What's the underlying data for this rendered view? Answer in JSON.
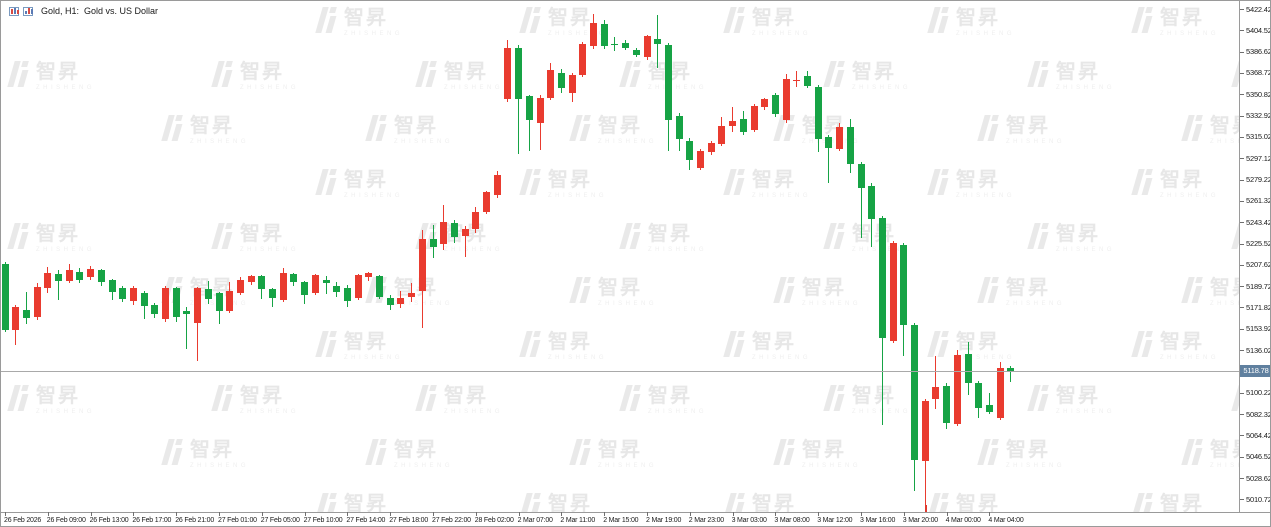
{
  "window": {
    "title": "Gold, H1:  Gold vs. US Dollar",
    "icons": [
      "candlestick-chart-icon",
      "chart-document-icon"
    ]
  },
  "watermark": {
    "logo_text": "智昇",
    "subtext": "ZHISHENG"
  },
  "price_axis": {
    "labels": [
      "5422.42",
      "5404.52",
      "5386.62",
      "5368.72",
      "5350.82",
      "5332.92",
      "5315.02",
      "5297.12",
      "5279.22",
      "5261.32",
      "5243.42",
      "5225.52",
      "5207.62",
      "5189.72",
      "5171.82",
      "5153.92",
      "5136.02",
      "5100.22",
      "5082.32",
      "5064.42",
      "5046.52",
      "5028.62",
      "5010.72"
    ],
    "step": 17.9,
    "current": {
      "value": "5118.78",
      "box_color": "#60809f"
    }
  },
  "time_axis": {
    "labels": [
      {
        "text": "26 Feb 2026",
        "bar": 0
      },
      {
        "text": "26 Feb 09:00",
        "bar": 4
      },
      {
        "text": "26 Feb 13:00",
        "bar": 8
      },
      {
        "text": "26 Feb 17:00",
        "bar": 12
      },
      {
        "text": "26 Feb 21:00",
        "bar": 16
      },
      {
        "text": "27 Feb 01:00",
        "bar": 20
      },
      {
        "text": "27 Feb 05:00",
        "bar": 24
      },
      {
        "text": "27 Feb 10:00",
        "bar": 28
      },
      {
        "text": "27 Feb 14:00",
        "bar": 32
      },
      {
        "text": "27 Feb 18:00",
        "bar": 36
      },
      {
        "text": "27 Feb 22:00",
        "bar": 40
      },
      {
        "text": "28 Feb 02:00",
        "bar": 44
      },
      {
        "text": "2 Mar 07:00",
        "bar": 48
      },
      {
        "text": "2 Mar 11:00",
        "bar": 52
      },
      {
        "text": "2 Mar 15:00",
        "bar": 56
      },
      {
        "text": "2 Mar 19:00",
        "bar": 60
      },
      {
        "text": "2 Mar 23:00",
        "bar": 64
      },
      {
        "text": "3 Mar 03:00",
        "bar": 68
      },
      {
        "text": "3 Mar 08:00",
        "bar": 72
      },
      {
        "text": "3 Mar 12:00",
        "bar": 76
      },
      {
        "text": "3 Mar 16:00",
        "bar": 80
      },
      {
        "text": "3 Mar 20:00",
        "bar": 84
      },
      {
        "text": "4 Mar 00:00",
        "bar": 88
      },
      {
        "text": "4 Mar 04:00",
        "bar": 92
      }
    ],
    "red_marker_bar": 86
  },
  "chart_data": {
    "type": "candlestick",
    "title": "Gold vs. US Dollar",
    "symbol": "Gold",
    "timeframe": "H1",
    "x_range": [
      "26 Feb 2026 05:00",
      "4 Mar 2026 06:00"
    ],
    "ylim": [
      4995,
      5428
    ],
    "price_grid_step": 17.9,
    "current_price": 5118.78,
    "color_convention": "red = bullish (up), green = bearish (down)",
    "up_color": "#e93b2f",
    "down_color": "#16a345",
    "grid": false,
    "values_estimated": true,
    "candles": [
      [
        5208,
        5210,
        5151,
        5153
      ],
      [
        5153,
        5174,
        5140,
        5172
      ],
      [
        5170,
        5185,
        5158,
        5163
      ],
      [
        5164,
        5192,
        5161,
        5189
      ],
      [
        5188,
        5206,
        5184,
        5201
      ],
      [
        5200,
        5203,
        5178,
        5194
      ],
      [
        5194,
        5208,
        5192,
        5203
      ],
      [
        5202,
        5205,
        5192,
        5195
      ],
      [
        5197,
        5207,
        5195,
        5204
      ],
      [
        5203,
        5204,
        5190,
        5193
      ],
      [
        5195,
        5196,
        5178,
        5185
      ],
      [
        5188,
        5190,
        5176,
        5179
      ],
      [
        5177,
        5190,
        5174,
        5188
      ],
      [
        5184,
        5186,
        5162,
        5173
      ],
      [
        5174,
        5176,
        5163,
        5166
      ],
      [
        5162,
        5190,
        5160,
        5188
      ],
      [
        5188,
        5189,
        5160,
        5164
      ],
      [
        5169,
        5172,
        5137,
        5166
      ],
      [
        5159,
        5189,
        5127,
        5188
      ],
      [
        5187,
        5194,
        5175,
        5179
      ],
      [
        5184,
        5185,
        5158,
        5169
      ],
      [
        5169,
        5193,
        5167,
        5186
      ],
      [
        5184,
        5197,
        5182,
        5195
      ],
      [
        5193,
        5199,
        5191,
        5198
      ],
      [
        5198,
        5199,
        5179,
        5187
      ],
      [
        5187,
        5188,
        5172,
        5180
      ],
      [
        5178,
        5205,
        5176,
        5201
      ],
      [
        5200,
        5201,
        5190,
        5193
      ],
      [
        5193,
        5194,
        5175,
        5182
      ],
      [
        5184,
        5200,
        5182,
        5199
      ],
      [
        5195,
        5198,
        5183,
        5192
      ],
      [
        5190,
        5193,
        5181,
        5185
      ],
      [
        5188,
        5191,
        5172,
        5177
      ],
      [
        5180,
        5200,
        5178,
        5199
      ],
      [
        5197,
        5202,
        5194,
        5201
      ],
      [
        5198,
        5199,
        5179,
        5181
      ],
      [
        5180,
        5182,
        5170,
        5174
      ],
      [
        5175,
        5186,
        5171,
        5180
      ],
      [
        5181,
        5192,
        5176,
        5184
      ],
      [
        5186,
        5237,
        5155,
        5229
      ],
      [
        5229,
        5241,
        5213,
        5223
      ],
      [
        5225,
        5258,
        5220,
        5244
      ],
      [
        5243,
        5245,
        5226,
        5231
      ],
      [
        5232,
        5240,
        5214,
        5238
      ],
      [
        5238,
        5256,
        5234,
        5252
      ],
      [
        5252,
        5270,
        5250,
        5269
      ],
      [
        5266,
        5286,
        5264,
        5283
      ],
      [
        5347,
        5396,
        5344,
        5390
      ],
      [
        5390,
        5392,
        5301,
        5347
      ],
      [
        5349,
        5350,
        5303,
        5329
      ],
      [
        5327,
        5350,
        5304,
        5348
      ],
      [
        5348,
        5377,
        5346,
        5371
      ],
      [
        5369,
        5372,
        5352,
        5356
      ],
      [
        5352,
        5369,
        5344,
        5367
      ],
      [
        5367,
        5395,
        5365,
        5393
      ],
      [
        5391,
        5418,
        5389,
        5411
      ],
      [
        5410,
        5413,
        5389,
        5391
      ],
      [
        5393,
        5399,
        5387,
        5392
      ],
      [
        5394,
        5396,
        5388,
        5390
      ],
      [
        5388,
        5390,
        5382,
        5384
      ],
      [
        5382,
        5401,
        5380,
        5400
      ],
      [
        5397,
        5417,
        5373,
        5393
      ],
      [
        5392,
        5394,
        5303,
        5329
      ],
      [
        5333,
        5335,
        5303,
        5313
      ],
      [
        5312,
        5314,
        5287,
        5296
      ],
      [
        5289,
        5305,
        5287,
        5303
      ],
      [
        5302,
        5312,
        5300,
        5310
      ],
      [
        5309,
        5332,
        5307,
        5324
      ],
      [
        5324,
        5340,
        5319,
        5328
      ],
      [
        5330,
        5337,
        5317,
        5319
      ],
      [
        5321,
        5343,
        5319,
        5341
      ],
      [
        5340,
        5348,
        5338,
        5347
      ],
      [
        5350,
        5352,
        5332,
        5334
      ],
      [
        5329,
        5368,
        5327,
        5364
      ],
      [
        5362,
        5370,
        5357,
        5363
      ],
      [
        5366,
        5370,
        5356,
        5358
      ],
      [
        5357,
        5359,
        5302,
        5313
      ],
      [
        5315,
        5317,
        5276,
        5306
      ],
      [
        5305,
        5327,
        5303,
        5323
      ],
      [
        5323,
        5330,
        5285,
        5292
      ],
      [
        5292,
        5294,
        5230,
        5272
      ],
      [
        5274,
        5276,
        5223,
        5246
      ],
      [
        5247,
        5249,
        5073,
        5146
      ],
      [
        5144,
        5228,
        5142,
        5226
      ],
      [
        5224,
        5226,
        5131,
        5157
      ],
      [
        5157,
        5159,
        5018,
        5044
      ],
      [
        5043,
        5095,
        5002,
        5093
      ],
      [
        5095,
        5131,
        5087,
        5105
      ],
      [
        5106,
        5108,
        5070,
        5075
      ],
      [
        5074,
        5136,
        5072,
        5132
      ],
      [
        5133,
        5143,
        5098,
        5108
      ],
      [
        5108,
        5110,
        5079,
        5087
      ],
      [
        5090,
        5100,
        5082,
        5084
      ],
      [
        5079,
        5126,
        5077,
        5121
      ],
      [
        5121,
        5123,
        5109,
        5118.78
      ]
    ]
  }
}
